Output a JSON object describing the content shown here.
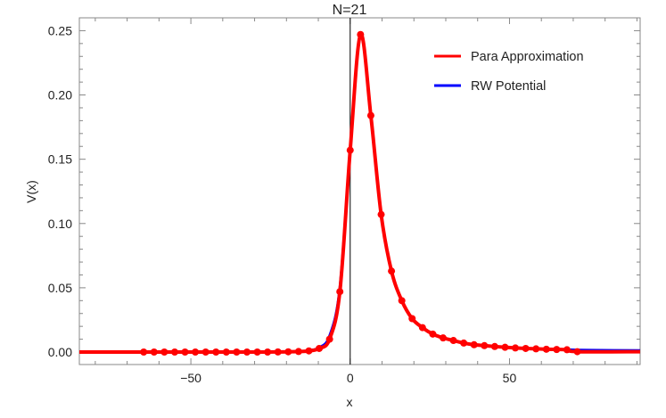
{
  "chart_data": {
    "type": "line",
    "title": "N=21",
    "xlabel": "x",
    "ylabel": "V(x)",
    "xlim": [
      -85,
      91
    ],
    "ylim": [
      -0.0097,
      0.26
    ],
    "xticks": [
      -50,
      0,
      50
    ],
    "xtick_labels": [
      "−50",
      "0",
      "50"
    ],
    "yticks": [
      0.0,
      0.05,
      0.1,
      0.15,
      0.2,
      0.25
    ],
    "ytick_labels": [
      "0.00",
      "0.05",
      "0.10",
      "0.15",
      "0.20",
      "0.25"
    ],
    "x_minor_step": 10,
    "y_minor_step": 0.01,
    "vertical_line_at": 0,
    "grid": false,
    "legend_position": "top-right",
    "series": [
      {
        "name": "Para Approximation",
        "color": "#ff0000",
        "markers": true,
        "x": [
          -85,
          -64.8,
          -61.56,
          -58.32,
          -55.08,
          -51.84,
          -48.6,
          -45.36,
          -42.12,
          -38.88,
          -35.64,
          -32.4,
          -29.16,
          -25.92,
          -22.68,
          -19.44,
          -16.2,
          -12.96,
          -9.72,
          -6.48,
          -3.24,
          0,
          3.24,
          6.48,
          9.72,
          12.96,
          16.2,
          19.44,
          22.68,
          25.92,
          29.16,
          32.4,
          35.64,
          38.88,
          42.12,
          45.36,
          48.6,
          51.84,
          55.08,
          58.32,
          61.56,
          64.8,
          68.04,
          71.28,
          91
        ],
        "y": [
          0,
          0,
          0,
          0,
          0,
          0,
          0,
          0,
          0,
          0,
          0,
          0,
          0,
          0,
          0.0001,
          0.0002,
          0.0004,
          0.0009,
          0.0028,
          0.01,
          0.047,
          0.157,
          0.247,
          0.184,
          0.107,
          0.063,
          0.04,
          0.026,
          0.019,
          0.014,
          0.011,
          0.009,
          0.007,
          0.0057,
          0.005,
          0.0043,
          0.0037,
          0.0032,
          0.0028,
          0.0025,
          0.0022,
          0.002,
          0.0018,
          0.0003,
          0.0003
        ]
      },
      {
        "name": "RW Potential",
        "color": "#0000ff",
        "markers": false,
        "x": [
          -85,
          -30,
          -16.2,
          -12.96,
          -9.72,
          -6.48,
          -3.24,
          0,
          3.24,
          6.48,
          9.72,
          12.96,
          16.2,
          19.44,
          22.68,
          25.92,
          29.16,
          32.4,
          35.64,
          38.88,
          42.12,
          45.36,
          48.6,
          51.84,
          55.08,
          58.32,
          61.56,
          64.8,
          68.04,
          75,
          91
        ],
        "y": [
          0,
          0,
          0.0005,
          0.0012,
          0.0035,
          0.0125,
          0.05,
          0.157,
          0.246,
          0.184,
          0.107,
          0.063,
          0.04,
          0.026,
          0.019,
          0.014,
          0.011,
          0.009,
          0.007,
          0.0057,
          0.005,
          0.0043,
          0.0037,
          0.0032,
          0.0028,
          0.0025,
          0.0022,
          0.002,
          0.0018,
          0.0015,
          0.0012
        ]
      }
    ]
  }
}
